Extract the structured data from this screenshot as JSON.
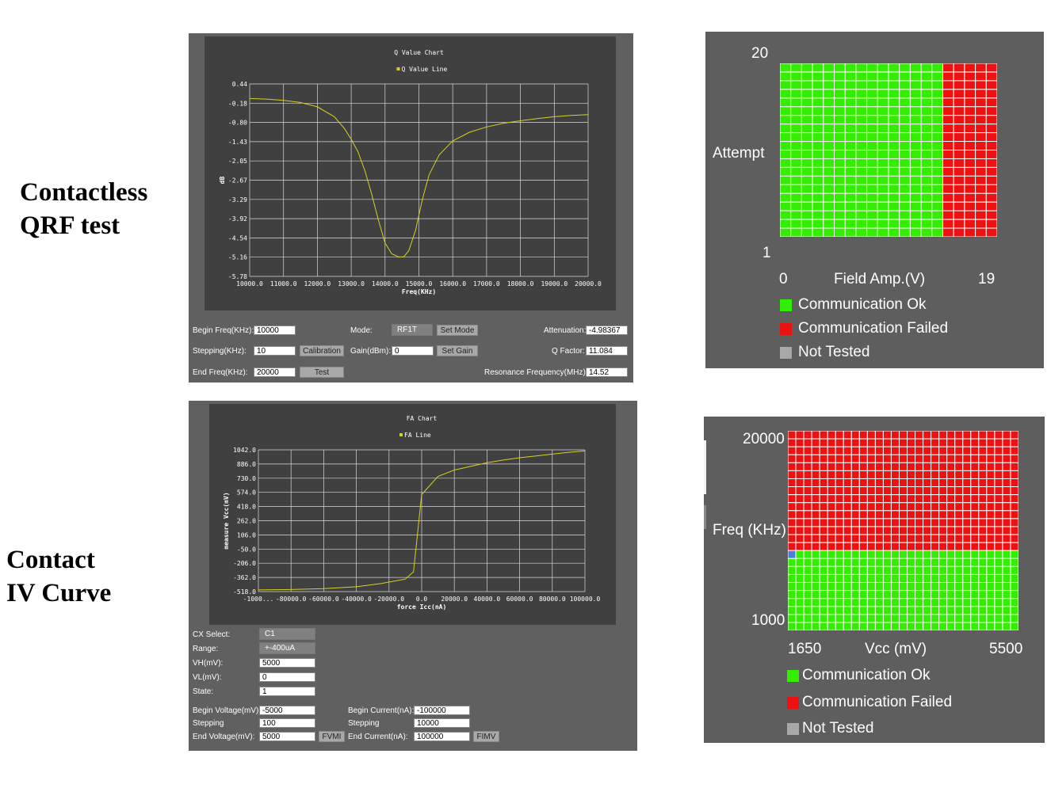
{
  "labels": {
    "qrf_line1": "Contactless",
    "qrf_line2": "QRF test",
    "iv_line1": "Contact",
    "iv_line2": "IV Curve"
  },
  "qrf_panel": {
    "form": {
      "begin_freq_label": "Begin Freq(KHz):",
      "begin_freq_value": "10000",
      "stepping_label": "Stepping(KHz):",
      "stepping_value": "10",
      "end_freq_label": "End Freq(KHz):",
      "end_freq_value": "20000",
      "calibration_button": "Calibration",
      "test_button": "Test",
      "mode_label": "Mode:",
      "mode_value": "RF1T",
      "set_mode_button": "Set Mode",
      "gain_label": "Gain(dBm):",
      "gain_value": "0",
      "set_gain_button": "Set Gain",
      "attenuation_label": "Attenuation:",
      "attenuation_value": "-4.98367",
      "q_factor_label": "Q Factor:",
      "q_factor_value": "11.084",
      "resonance_label": "Resonance Frequency(MHz):",
      "resonance_value": "14.52"
    }
  },
  "iv_panel": {
    "form": {
      "cx_select_label": "CX Select:",
      "cx_select_value": "C1",
      "range_label": "Range:",
      "range_value": "+-400uA",
      "vh_label": "VH(mV):",
      "vh_value": "5000",
      "vl_label": "VL(mV):",
      "vl_value": "0",
      "state_label": "State:",
      "state_value": "1",
      "begin_voltage_label": "Begin Voltage(mV):",
      "begin_voltage_value": "-5000",
      "stepping_v_label": "Stepping",
      "stepping_v_value": "100",
      "end_voltage_label": "End Voltage(mV):",
      "end_voltage_value": "5000",
      "fvmi_button": "FVMI",
      "begin_current_label": "Begin Current(nA):",
      "begin_current_value": "-100000",
      "stepping_i_label": "Stepping",
      "stepping_i_value": "10000",
      "end_current_label": "End Current(nA):",
      "end_current_value": "100000",
      "fimv_button": "FIMV"
    }
  },
  "grid_top": {
    "y_top": "20",
    "y_label": "Attempt",
    "y_bottom": "1",
    "x_left": "0",
    "x_label": "Field Amp.(V)",
    "x_right": "19",
    "legend": [
      "Communication Ok",
      "Communication Failed",
      "Not Tested"
    ]
  },
  "grid_bottom": {
    "y_top": "20000",
    "y_label": "Freq (KHz)",
    "y_bottom": "1000",
    "x_left": "1650",
    "x_label": "Vcc (mV)",
    "x_right": "5500",
    "legend": [
      "Communication Ok",
      "Communication Failed",
      "Not Tested"
    ]
  },
  "colors": {
    "ok": "#33ee00",
    "failed": "#ee1111",
    "not_tested": "#a8a8a8",
    "highlight": "#4a7fd8",
    "chart_line": "#d8d020",
    "chart_bg": "#404040",
    "panel_bg": "#606060"
  },
  "chart_data": [
    {
      "type": "line",
      "title": "Q Value Chart",
      "series": [
        {
          "name": "Q Value Line",
          "x": [
            10000,
            10500,
            11000,
            11500,
            12000,
            12500,
            12800,
            13000,
            13200,
            13400,
            13600,
            13800,
            14000,
            14200,
            14400,
            14550,
            14700,
            14900,
            15100,
            15300,
            15600,
            16000,
            16500,
            17000,
            17500,
            18000,
            18500,
            19000,
            19500,
            20000
          ],
          "y": [
            -0.03,
            -0.05,
            -0.09,
            -0.16,
            -0.3,
            -0.62,
            -1.0,
            -1.35,
            -1.75,
            -2.35,
            -3.1,
            -3.95,
            -4.7,
            -5.05,
            -5.15,
            -5.15,
            -4.95,
            -4.3,
            -3.3,
            -2.5,
            -1.85,
            -1.4,
            -1.12,
            -0.95,
            -0.83,
            -0.75,
            -0.68,
            -0.62,
            -0.58,
            -0.55
          ]
        }
      ],
      "xlabel": "Freq(KHz)",
      "ylabel": "dB",
      "xticks": [
        "10000.0",
        "11000.0",
        "12000.0",
        "13000.0",
        "14000.0",
        "15000.0",
        "16000.0",
        "17000.0",
        "18000.0",
        "19000.0",
        "20000.0"
      ],
      "yticks": [
        "0.44",
        "-0.18",
        "-0.80",
        "-1.43",
        "-2.05",
        "-2.67",
        "-3.29",
        "-3.92",
        "-4.54",
        "-5.16",
        "-5.78"
      ],
      "xlim": [
        10000,
        20000
      ],
      "ylim": [
        -5.78,
        0.44
      ],
      "grid": true,
      "legend": "top-center"
    },
    {
      "type": "line",
      "title": "FA Chart",
      "series": [
        {
          "name": "FA Line",
          "x": [
            -100000,
            -80000,
            -60000,
            -40000,
            -25000,
            -10000,
            -5000,
            0,
            5000,
            10000,
            20000,
            30000,
            40000,
            50000,
            60000,
            70000,
            80000,
            90000,
            100000
          ],
          "y": [
            -500,
            -495,
            -485,
            -465,
            -430,
            -380,
            -300,
            550,
            650,
            750,
            820,
            860,
            900,
            930,
            955,
            975,
            995,
            1015,
            1030
          ]
        }
      ],
      "xlabel": "force Icc(nA)",
      "ylabel": "measure Vcc(mV)",
      "xticks": [
        "-1000...",
        "-80000.0",
        "-60000.0",
        "-40000.0",
        "-20000.0",
        "0.0",
        "20000.0",
        "40000.0",
        "60000.0",
        "80000.0",
        "100000.0"
      ],
      "yticks": [
        "1042.0",
        "886.0",
        "730.0",
        "574.0",
        "418.0",
        "262.0",
        "106.0",
        "-50.0",
        "-206.0",
        "-362.0",
        "-518.0"
      ],
      "xlim": [
        -100000,
        100000
      ],
      "ylim": [
        -518,
        1042
      ],
      "grid": true,
      "legend": "top-center"
    },
    {
      "type": "heatmap",
      "xlabel": "Field Amp.(V)",
      "ylabel": "Attempt",
      "cols": 20,
      "rows": 20,
      "failed_from_col": 15,
      "legend": [
        "Communication Ok",
        "Communication Failed",
        "Not Tested"
      ]
    },
    {
      "type": "heatmap",
      "xlabel": "Vcc (mV)",
      "ylabel": "Freq (KHz)",
      "cols": 29,
      "rows": 25,
      "ok_rows_bottom": 10,
      "highlight_cell": {
        "row_from_bottom": 10,
        "col": 1
      },
      "legend": [
        "Communication Ok",
        "Communication Failed",
        "Not Tested"
      ]
    }
  ]
}
